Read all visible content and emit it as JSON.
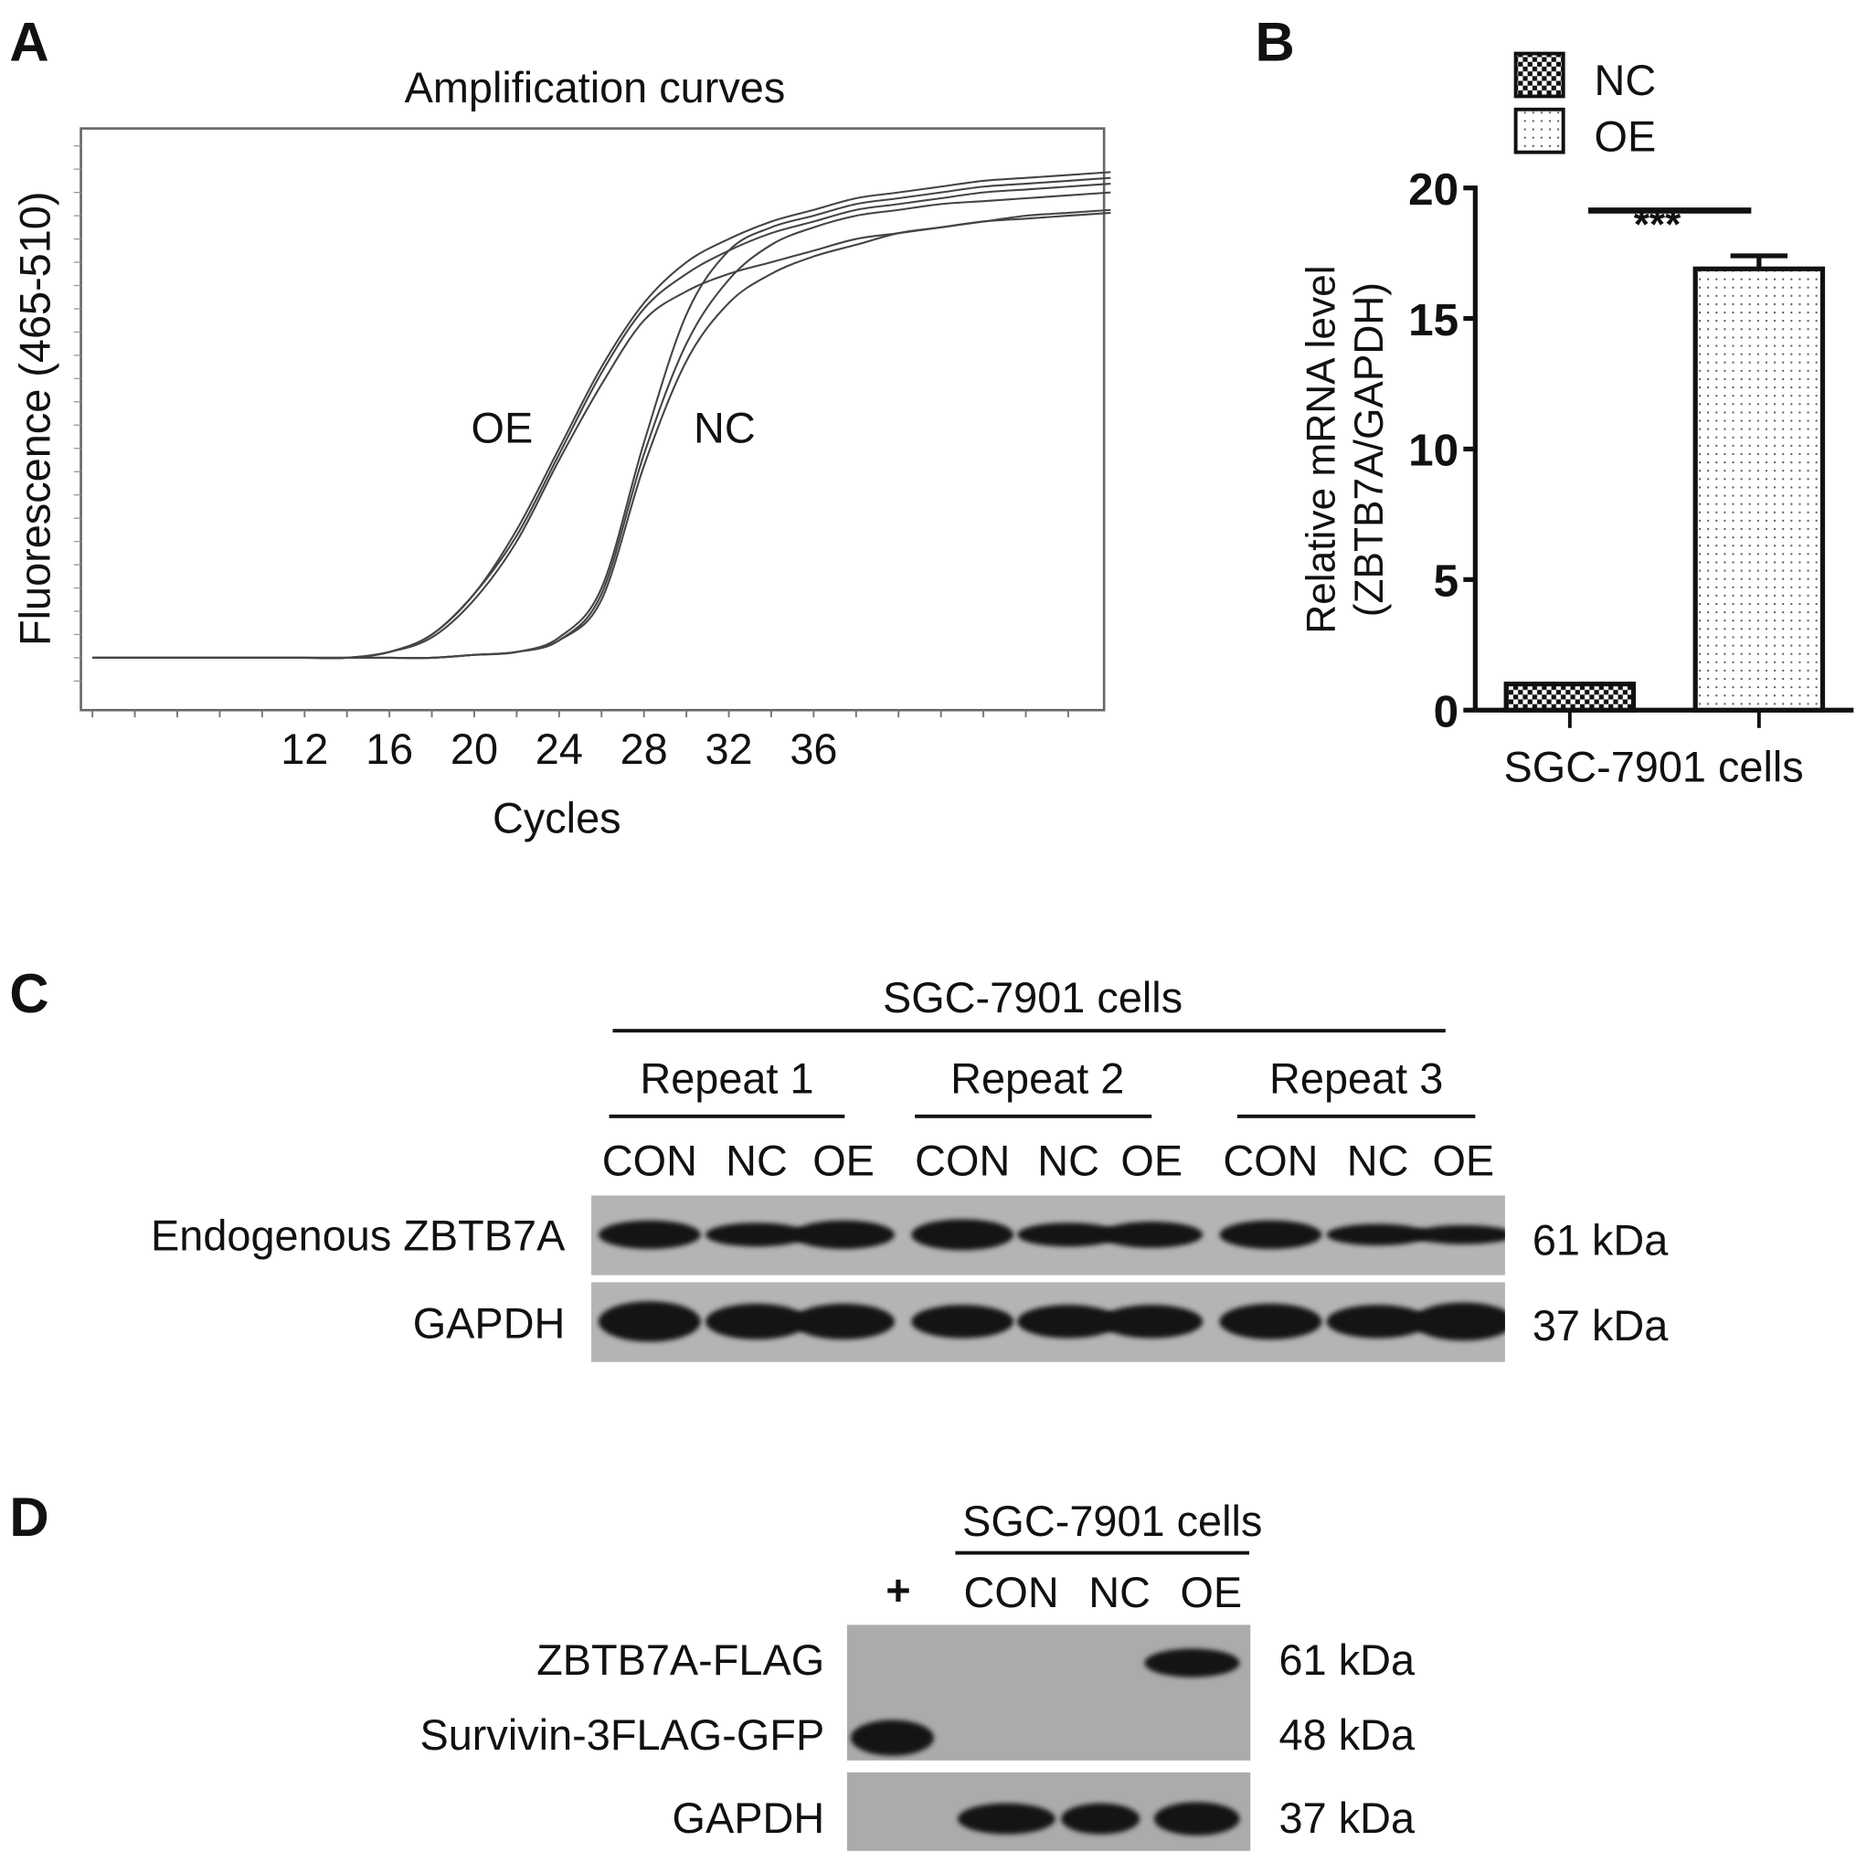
{
  "panels": {
    "a": {
      "letter": "A"
    },
    "b": {
      "letter": "B"
    },
    "c": {
      "letter": "C"
    },
    "d": {
      "letter": "D"
    }
  },
  "chart_data": [
    {
      "type": "line",
      "title": "Amplification curves",
      "xlabel": "Cycles",
      "ylabel": "Fluorescence (465-510)",
      "x_ticks": [
        12,
        16,
        20,
        24,
        28,
        32,
        36
      ],
      "xlim": [
        1.5,
        49.7
      ],
      "ylim": [
        0,
        100
      ],
      "y_units": "relative fluorescence (unlabeled axis, estimated 0-100)",
      "grid": false,
      "annotations": [
        {
          "text": "OE",
          "near_cycle": 22
        },
        {
          "text": "NC",
          "near_cycle": 30
        }
      ],
      "x": [
        2,
        4,
        6,
        8,
        10,
        12,
        14,
        16,
        18,
        20,
        22,
        24,
        26,
        28,
        30,
        32,
        34,
        36,
        38,
        40,
        42,
        44,
        46,
        48,
        50
      ],
      "series": [
        {
          "group": "OE",
          "values": [
            9,
            9,
            9,
            9,
            9,
            9,
            9,
            10,
            13,
            20,
            30,
            44,
            58,
            69,
            75,
            79,
            82,
            84,
            86,
            87,
            88,
            89,
            89.5,
            90,
            90.5
          ]
        },
        {
          "group": "OE",
          "values": [
            9,
            9,
            9,
            9,
            9,
            9,
            9,
            10,
            12.5,
            19,
            29,
            43,
            56,
            67,
            72,
            75,
            77,
            79,
            81,
            82,
            83,
            84,
            85,
            85.5,
            86
          ]
        },
        {
          "group": "OE",
          "values": [
            9,
            9,
            9,
            9,
            9,
            9,
            9,
            10,
            13,
            20,
            31,
            45,
            59,
            70,
            77,
            81,
            84,
            86,
            88,
            89,
            90,
            91,
            91.5,
            92,
            92.5
          ]
        },
        {
          "group": "NC",
          "values": [
            9,
            9,
            9,
            9,
            9,
            9,
            9,
            9,
            9,
            9.5,
            10,
            12,
            20,
            44,
            63,
            74,
            80,
            83,
            85,
            86,
            87,
            87.5,
            88,
            88.5,
            89
          ]
        },
        {
          "group": "NC",
          "values": [
            9,
            9,
            9,
            9,
            9,
            9,
            9,
            9,
            9,
            9.5,
            10,
            12,
            19,
            42,
            60,
            70,
            75,
            78,
            80,
            82,
            83,
            84,
            84.5,
            85,
            85.5
          ]
        },
        {
          "group": "NC",
          "values": [
            9,
            9,
            9,
            9,
            9,
            9,
            9,
            9,
            9,
            9.5,
            10,
            12.5,
            21,
            46,
            68,
            79,
            83,
            85,
            87,
            88,
            89,
            90,
            90.5,
            91,
            91.5
          ]
        }
      ]
    },
    {
      "type": "bar",
      "title": "",
      "xlabel": "SGC-7901 cells",
      "ylabel": "Relative mRNA level (ZBTB7A/GAPDH)",
      "ylabel_line1": "Relative mRNA level",
      "ylabel_line2": "(ZBTB7A/GAPDH)",
      "ylim": [
        0,
        20
      ],
      "y_ticks": [
        0,
        5,
        10,
        15,
        20
      ],
      "categories": [
        "NC",
        "OE"
      ],
      "values": [
        1.0,
        16.9
      ],
      "error_upper": [
        0,
        0.5
      ],
      "legend": {
        "placement": "top",
        "entries": [
          {
            "name": "NC",
            "pattern": "checkerboard"
          },
          {
            "name": "OE",
            "pattern": "dots"
          }
        ]
      },
      "significance": "***"
    }
  ],
  "blot_c": {
    "title": "SGC-7901 cells",
    "repeats": [
      "Repeat 1",
      "Repeat 2",
      "Repeat 3"
    ],
    "lanes": [
      "CON",
      "NC",
      "OE",
      "CON",
      "NC",
      "OE",
      "CON",
      "NC",
      "OE"
    ],
    "rows": [
      {
        "label": "Endogenous ZBTB7A",
        "size": "61 kDa"
      },
      {
        "label": "GAPDH",
        "size": "37 kDa"
      }
    ]
  },
  "blot_d": {
    "title": "SGC-7901 cells",
    "control_lane": "+",
    "lanes": [
      "CON",
      "NC",
      "OE"
    ],
    "rows": [
      {
        "label": "ZBTB7A-FLAG",
        "size": "61 kDa"
      },
      {
        "label": "Survivin-3FLAG-GFP",
        "size": "48 kDa"
      },
      {
        "label": "GAPDH",
        "size": "37 kDa"
      }
    ]
  }
}
